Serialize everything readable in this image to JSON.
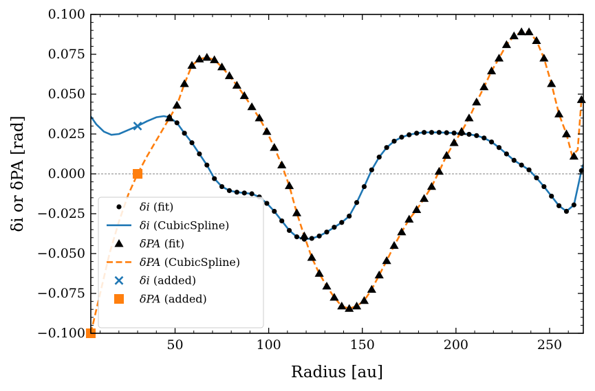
{
  "chart_data": {
    "type": "line",
    "xlabel": "Radius [au]",
    "ylabel": "δi or δPA [rad]",
    "xlim": [
      5,
      268
    ],
    "ylim": [
      -0.1,
      0.1
    ],
    "xticks": [
      50,
      100,
      150,
      200,
      250
    ],
    "yticks": [
      -0.1,
      -0.075,
      -0.05,
      -0.025,
      0.0,
      0.025,
      0.05,
      0.075,
      0.1
    ],
    "xtick_labels": [
      "50",
      "100",
      "150",
      "200",
      "250"
    ],
    "ytick_labels": [
      "−0.100",
      "−0.075",
      "−0.050",
      "−0.025",
      "0.000",
      "0.025",
      "0.050",
      "0.075",
      "0.100"
    ],
    "zero_line": true,
    "legend_position": "lower-left",
    "colors": {
      "di": "#1f77b4",
      "dpa": "#ff7f0e",
      "markers": "#000000",
      "zero": "#808080"
    },
    "series": [
      {
        "name": "δi (fit)",
        "legend_main": "δi",
        "legend_note": " (fit)",
        "kind": "marker-circle",
        "x": [
          47,
          51,
          55,
          59,
          63,
          67,
          71,
          75,
          79,
          83,
          87,
          91,
          95,
          99,
          103,
          107,
          111,
          115,
          119,
          123,
          127,
          131,
          135,
          139,
          143,
          147,
          151,
          155,
          159,
          163,
          167,
          171,
          175,
          179,
          183,
          187,
          191,
          195,
          199,
          203,
          207,
          211,
          215,
          219,
          223,
          227,
          231,
          235,
          239,
          243,
          247,
          251,
          255,
          259,
          263,
          267
        ],
        "y": [
          0.0355,
          0.032,
          0.0255,
          0.0195,
          0.0125,
          0.0055,
          -0.003,
          -0.008,
          -0.0105,
          -0.0115,
          -0.012,
          -0.0125,
          -0.0145,
          -0.0185,
          -0.0235,
          -0.0295,
          -0.0355,
          -0.0395,
          -0.041,
          -0.0405,
          -0.039,
          -0.0365,
          -0.0335,
          -0.0305,
          -0.0265,
          -0.018,
          -0.008,
          0.0025,
          0.0105,
          0.0165,
          0.0205,
          0.023,
          0.0245,
          0.0255,
          0.026,
          0.026,
          0.026,
          0.0258,
          0.0256,
          0.0253,
          0.0248,
          0.024,
          0.0225,
          0.02,
          0.0165,
          0.0125,
          0.0085,
          0.0055,
          0.0025,
          -0.0025,
          -0.008,
          -0.014,
          -0.02,
          -0.0235,
          -0.0195,
          0.002
        ]
      },
      {
        "name": "δi (CubicSpline)",
        "legend_main": "δi",
        "legend_note": " (CubicSpline)",
        "kind": "line-solid",
        "x": [
          5,
          8,
          12,
          16,
          20,
          25,
          30,
          35,
          40,
          44,
          47,
          51,
          55,
          59,
          63,
          67,
          71,
          75,
          79,
          83,
          87,
          91,
          95,
          99,
          103,
          107,
          111,
          115,
          119,
          123,
          127,
          131,
          135,
          139,
          143,
          147,
          151,
          155,
          159,
          163,
          167,
          171,
          175,
          179,
          183,
          187,
          191,
          195,
          199,
          203,
          207,
          211,
          215,
          219,
          223,
          227,
          231,
          235,
          239,
          243,
          247,
          251,
          255,
          259,
          263,
          267,
          268
        ],
        "y": [
          0.036,
          0.031,
          0.0265,
          0.0245,
          0.025,
          0.0275,
          0.03,
          0.033,
          0.0355,
          0.0362,
          0.0355,
          0.032,
          0.0255,
          0.0195,
          0.0125,
          0.0055,
          -0.003,
          -0.008,
          -0.0105,
          -0.0115,
          -0.012,
          -0.0125,
          -0.0145,
          -0.0185,
          -0.0235,
          -0.0295,
          -0.0355,
          -0.0395,
          -0.041,
          -0.0405,
          -0.039,
          -0.0365,
          -0.0335,
          -0.0305,
          -0.0265,
          -0.018,
          -0.008,
          0.0025,
          0.0105,
          0.0165,
          0.0205,
          0.023,
          0.0245,
          0.0255,
          0.026,
          0.026,
          0.026,
          0.0258,
          0.0256,
          0.0253,
          0.0248,
          0.024,
          0.0225,
          0.02,
          0.0165,
          0.0125,
          0.0085,
          0.0055,
          0.0025,
          -0.0025,
          -0.008,
          -0.014,
          -0.02,
          -0.0235,
          -0.0195,
          0.002,
          0.006
        ]
      },
      {
        "name": "δPA (fit)",
        "legend_main": "δPA",
        "legend_note": " (fit)",
        "kind": "marker-triangle",
        "x": [
          47,
          51,
          55,
          59,
          63,
          67,
          71,
          75,
          79,
          83,
          87,
          91,
          95,
          99,
          103,
          107,
          111,
          115,
          119,
          123,
          127,
          131,
          135,
          139,
          143,
          147,
          151,
          155,
          159,
          163,
          167,
          171,
          175,
          179,
          183,
          187,
          191,
          195,
          199,
          203,
          207,
          211,
          215,
          219,
          223,
          227,
          231,
          235,
          239,
          243,
          247,
          251,
          255,
          259,
          263,
          267
        ],
        "y": [
          0.035,
          0.043,
          0.0565,
          0.068,
          0.072,
          0.073,
          0.0715,
          0.067,
          0.0615,
          0.0555,
          0.049,
          0.042,
          0.035,
          0.0265,
          0.0165,
          0.0055,
          -0.0075,
          -0.0245,
          -0.039,
          -0.0525,
          -0.0625,
          -0.0705,
          -0.0775,
          -0.083,
          -0.0845,
          -0.083,
          -0.0795,
          -0.0725,
          -0.0635,
          -0.0545,
          -0.045,
          -0.0365,
          -0.0285,
          -0.0225,
          -0.0155,
          -0.008,
          0.0015,
          0.0115,
          0.0195,
          0.0265,
          0.035,
          0.045,
          0.0545,
          0.0645,
          0.0725,
          0.081,
          0.0865,
          0.089,
          0.089,
          0.0835,
          0.0725,
          0.0565,
          0.0375,
          0.025,
          0.011,
          0.0465
        ]
      },
      {
        "name": "δPA (CubicSpline)",
        "legend_main": "δPA",
        "legend_note": " (CubicSpline)",
        "kind": "line-dashed",
        "x": [
          5,
          10,
          15,
          20,
          25,
          30,
          35,
          40,
          44,
          47,
          51,
          55,
          59,
          63,
          67,
          71,
          75,
          79,
          83,
          87,
          91,
          95,
          99,
          103,
          107,
          111,
          115,
          119,
          123,
          127,
          131,
          135,
          139,
          143,
          147,
          151,
          155,
          159,
          163,
          167,
          171,
          175,
          179,
          183,
          187,
          191,
          195,
          199,
          203,
          207,
          211,
          215,
          219,
          223,
          227,
          231,
          235,
          239,
          243,
          247,
          251,
          255,
          259,
          262,
          265,
          267
        ],
        "y": [
          -0.1,
          -0.075,
          -0.05,
          -0.03,
          -0.013,
          0.0,
          0.011,
          0.021,
          0.029,
          0.035,
          0.043,
          0.0565,
          0.068,
          0.072,
          0.073,
          0.0715,
          0.067,
          0.0615,
          0.0555,
          0.049,
          0.042,
          0.035,
          0.0265,
          0.0165,
          0.0055,
          -0.0075,
          -0.0245,
          -0.039,
          -0.0525,
          -0.0625,
          -0.0705,
          -0.0775,
          -0.083,
          -0.0845,
          -0.083,
          -0.0795,
          -0.0725,
          -0.0635,
          -0.0545,
          -0.045,
          -0.0365,
          -0.0285,
          -0.0225,
          -0.0155,
          -0.008,
          0.0015,
          0.0115,
          0.0195,
          0.0265,
          0.035,
          0.045,
          0.0545,
          0.0645,
          0.0725,
          0.081,
          0.0865,
          0.089,
          0.089,
          0.0835,
          0.0725,
          0.0565,
          0.0375,
          0.025,
          0.0115,
          0.015,
          0.0465
        ]
      },
      {
        "name": "δi (added)",
        "legend_main": "δi",
        "legend_note": " (added)",
        "kind": "marker-x",
        "x": [
          30
        ],
        "y": [
          0.03
        ]
      },
      {
        "name": "δPA (added)",
        "legend_main": "δPA",
        "legend_note": " (added)",
        "kind": "marker-square",
        "x": [
          5,
          30
        ],
        "y": [
          -0.1,
          0.0
        ]
      }
    ]
  }
}
